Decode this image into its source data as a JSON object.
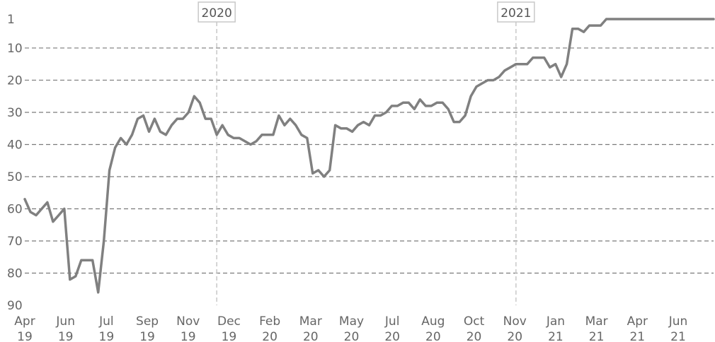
{
  "chart_data": {
    "type": "line",
    "y_reversed": true,
    "ylim": [
      90,
      1
    ],
    "yticks": [
      1,
      10,
      20,
      30,
      40,
      50,
      60,
      70,
      80,
      90
    ],
    "grid": "horizontal dashed",
    "x_tick_labels": [
      [
        "Apr",
        "19"
      ],
      [
        "Jun",
        "19"
      ],
      [
        "Jul",
        "19"
      ],
      [
        "Sep",
        "19"
      ],
      [
        "Nov",
        "19"
      ],
      [
        "Dec",
        "19"
      ],
      [
        "Feb",
        "20"
      ],
      [
        "Mar",
        "20"
      ],
      [
        "May",
        "20"
      ],
      [
        "Jul",
        "20"
      ],
      [
        "Aug",
        "20"
      ],
      [
        "Oct",
        "20"
      ],
      [
        "Nov",
        "20"
      ],
      [
        "Jan",
        "21"
      ],
      [
        "Mar",
        "21"
      ],
      [
        "Apr",
        "21"
      ],
      [
        "Jun",
        "21"
      ]
    ],
    "year_markers": [
      {
        "label": "2020",
        "index": 34
      },
      {
        "label": "2021",
        "index": 87
      }
    ],
    "series": [
      {
        "color": "#808080",
        "values": [
          57,
          61,
          62,
          60,
          58,
          64,
          62,
          60,
          82,
          81,
          76,
          76,
          76,
          86,
          70,
          48,
          41,
          38,
          40,
          37,
          32,
          31,
          36,
          32,
          36,
          37,
          34,
          32,
          32,
          30,
          25,
          27,
          32,
          32,
          37,
          34,
          37,
          38,
          38,
          39,
          40,
          39,
          37,
          37,
          37,
          31,
          34,
          32,
          34,
          37,
          38,
          49,
          48,
          50,
          48,
          34,
          35,
          35,
          36,
          34,
          33,
          34,
          31,
          31,
          30,
          28,
          28,
          27,
          27,
          29,
          26,
          28,
          28,
          27,
          27,
          29,
          33,
          33,
          31,
          25,
          22,
          21,
          20,
          20,
          19,
          17,
          16,
          15,
          15,
          15,
          13,
          13,
          13,
          16,
          15,
          19,
          15,
          4,
          4,
          5,
          3,
          3,
          3,
          1,
          1,
          1,
          1,
          1,
          1,
          1,
          1,
          1,
          1,
          1,
          1,
          1,
          1,
          1,
          1,
          1,
          1,
          1,
          1
        ]
      }
    ]
  }
}
